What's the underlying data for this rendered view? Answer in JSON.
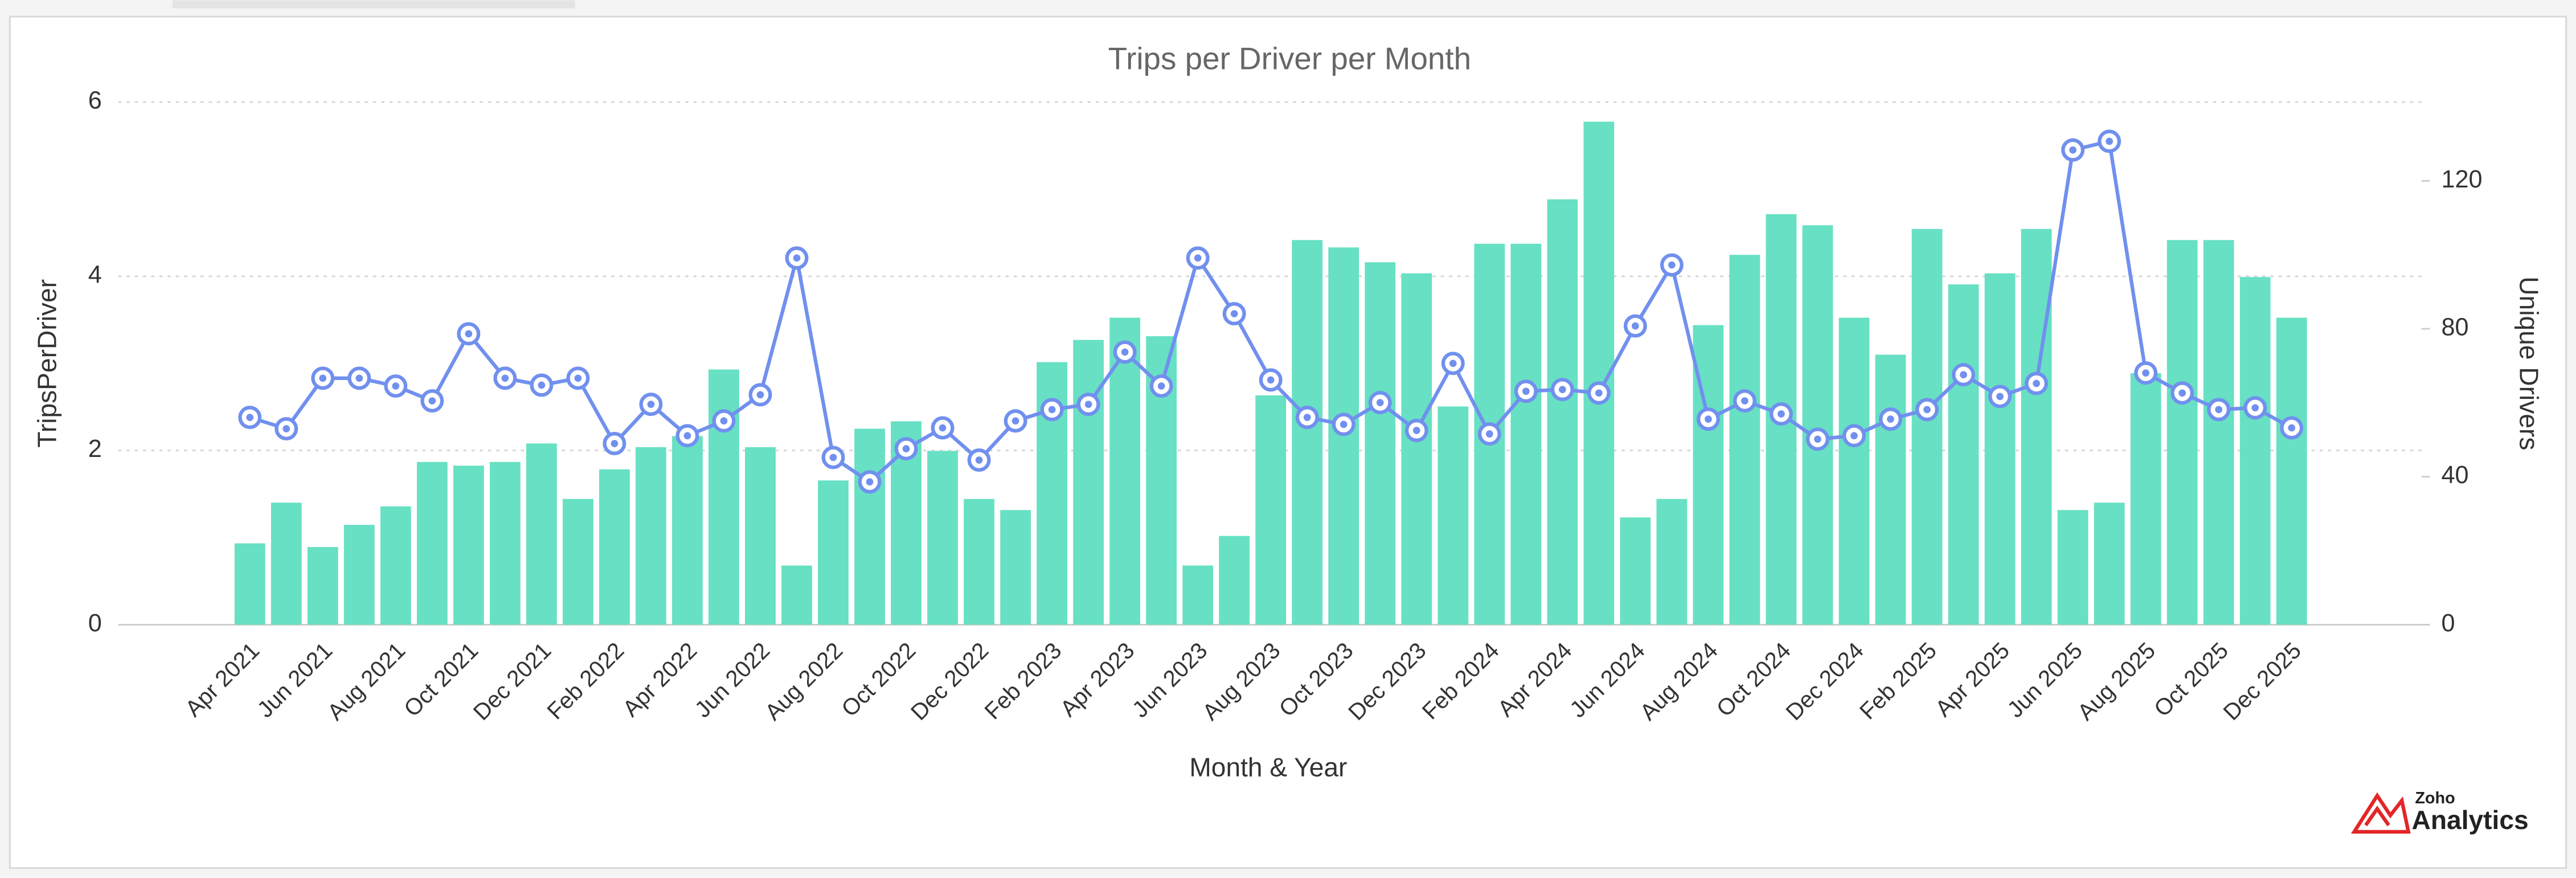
{
  "chart_data": {
    "type": "combo",
    "title": "Trips per Driver per Month",
    "xlabel": "Month & Year",
    "ylabel": "TripsPerDriver",
    "y2label": "Unique Drivers",
    "categories": [
      "Apr 2021",
      null,
      "Jun 2021",
      null,
      "Aug 2021",
      null,
      "Oct 2021",
      null,
      "Dec 2021",
      null,
      "Feb 2022",
      null,
      "Apr 2022",
      null,
      "Jun 2022",
      null,
      "Aug 2022",
      null,
      "Oct 2022",
      null,
      "Dec 2022",
      null,
      "Feb 2023",
      null,
      "Apr 2023",
      null,
      "Jun 2023",
      null,
      "Aug 2023",
      null,
      "Oct 2023",
      null,
      "Dec 2023",
      null,
      "Feb 2024",
      null,
      "Apr 2024",
      null,
      "Jun 2024",
      null,
      "Aug 2024",
      null,
      "Oct 2024",
      null,
      "Dec 2024",
      null,
      "Feb 2025",
      null,
      "Apr 2025",
      null,
      "Jun 2025",
      null,
      "Aug 2025",
      null,
      "Oct 2025",
      null,
      "Dec 2025"
    ],
    "series": [
      {
        "kind": "bar",
        "axis": "y2",
        "color": "#67e0c3",
        "values": [
          22,
          33,
          21,
          27,
          32,
          44,
          43,
          44,
          49,
          34,
          42,
          48,
          51,
          69,
          48,
          16,
          39,
          53,
          55,
          47,
          34,
          31,
          71,
          77,
          83,
          78,
          16,
          24,
          62,
          104,
          102,
          98,
          95,
          59,
          103,
          103,
          115,
          136,
          29,
          34,
          81,
          100,
          111,
          108,
          83,
          73,
          107,
          92,
          95,
          107,
          31,
          33,
          68,
          104,
          104,
          94,
          83
        ]
      },
      {
        "kind": "line",
        "axis": "y",
        "color": "#7190ee",
        "values": [
          2.38,
          2.25,
          2.83,
          2.83,
          2.74,
          2.57,
          3.34,
          2.83,
          2.75,
          2.83,
          2.08,
          2.53,
          2.17,
          2.34,
          2.64,
          4.21,
          1.92,
          1.64,
          2.02,
          2.26,
          1.89,
          2.34,
          2.47,
          2.53,
          3.13,
          2.74,
          4.21,
          3.57,
          2.81,
          2.38,
          2.3,
          2.55,
          2.23,
          3.0,
          2.19,
          2.68,
          2.7,
          2.66,
          3.43,
          4.13,
          2.36,
          2.57,
          2.42,
          2.13,
          2.17,
          2.36,
          2.47,
          2.87,
          2.62,
          2.77,
          5.45,
          5.55,
          2.89,
          2.66,
          2.47,
          2.49,
          2.26
        ]
      }
    ],
    "ylim": [
      0,
      6
    ],
    "yticks": [
      0,
      2,
      4,
      6
    ],
    "y2lim": [
      0,
      141.3
    ],
    "y2ticks": [
      0,
      40,
      80,
      120
    ],
    "grid": true
  },
  "branding": {
    "small": "Zoho",
    "name": "Analytics"
  }
}
